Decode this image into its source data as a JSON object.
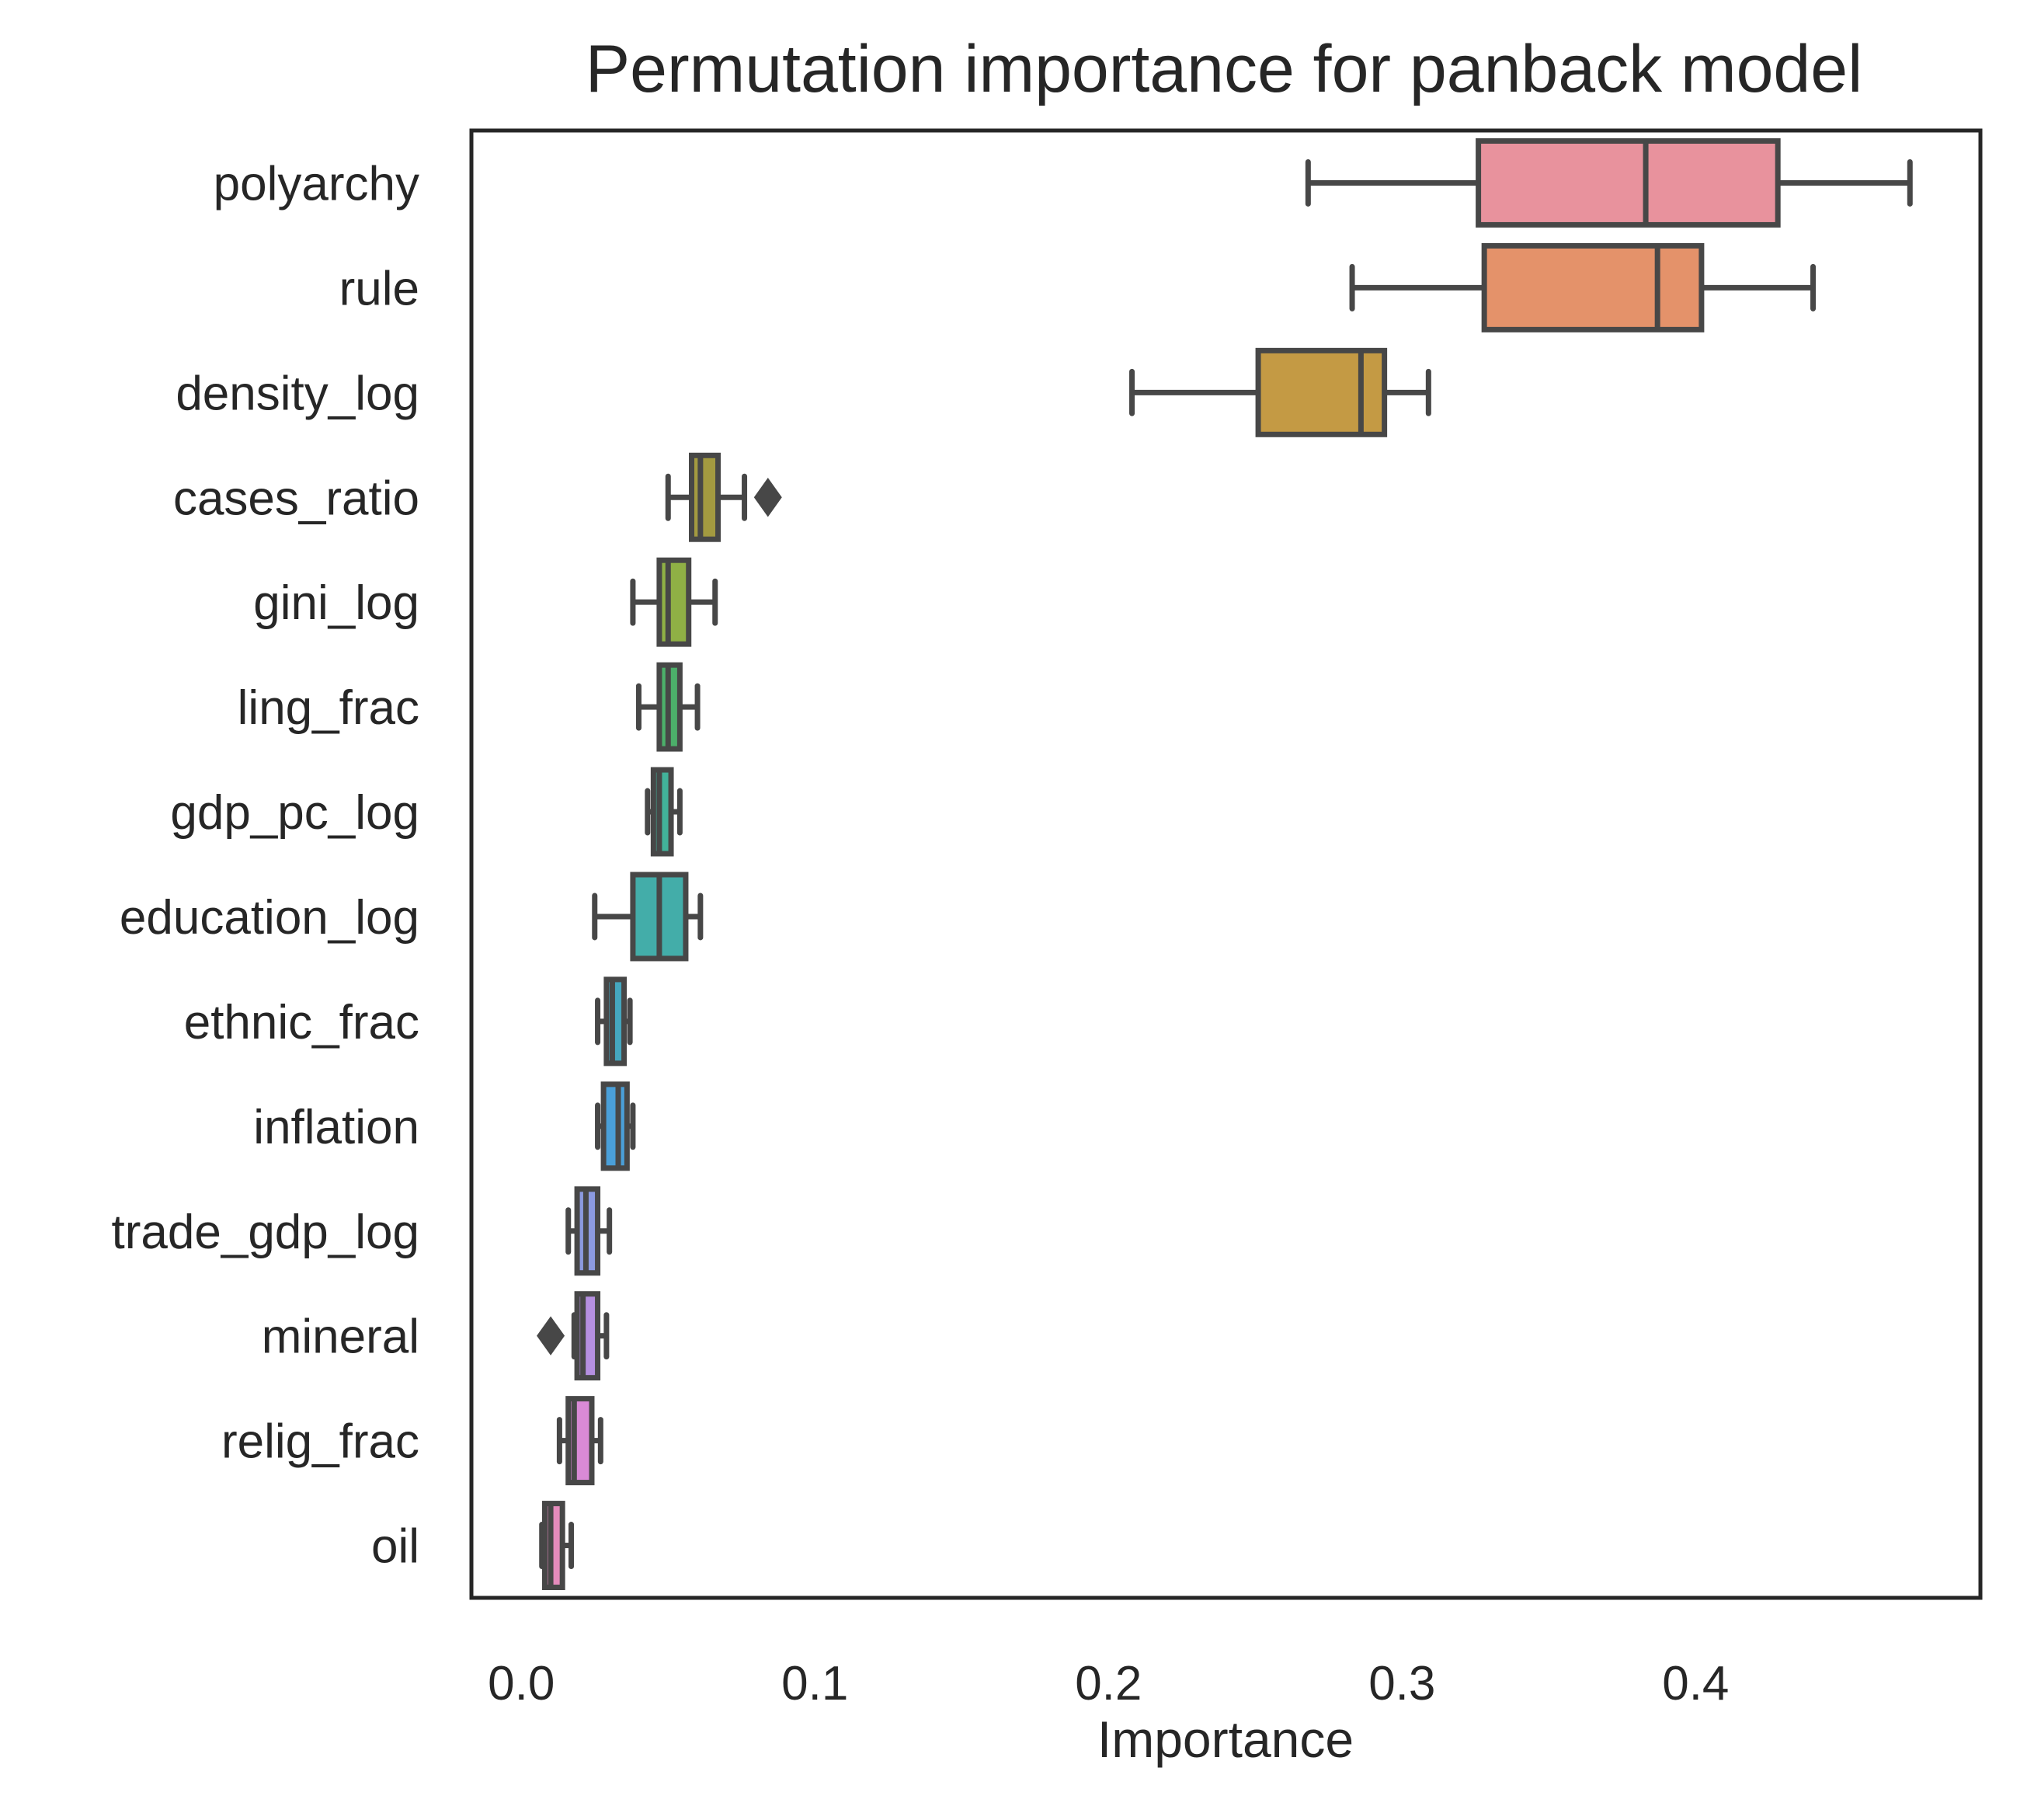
{
  "chart_data": {
    "type": "boxplot",
    "title": "Permutation importance for panback model",
    "xlabel": "Importance",
    "ylabel": "",
    "xlim": [
      -0.017,
      0.497
    ],
    "xticks": [
      0.0,
      0.1,
      0.2,
      0.3,
      0.4
    ],
    "xtick_labels": [
      "0.0",
      "0.1",
      "0.2",
      "0.3",
      "0.4"
    ],
    "grid": false,
    "orientation": "horizontal",
    "categories": [
      "polyarchy",
      "rule",
      "density_log",
      "cases_ratio",
      "gini_log",
      "ling_frac",
      "gdp_pc_log",
      "education_log",
      "ethnic_frac",
      "inflation",
      "trade_gdp_log",
      "mineral",
      "relig_frac",
      "oil"
    ],
    "boxes": [
      {
        "label": "polyarchy",
        "whislo": 0.268,
        "q1": 0.326,
        "med": 0.383,
        "q3": 0.428,
        "whishi": 0.473,
        "fliers": [],
        "color": "#e8929d"
      },
      {
        "label": "rule",
        "whislo": 0.283,
        "q1": 0.328,
        "med": 0.387,
        "q3": 0.402,
        "whishi": 0.44,
        "fliers": [],
        "color": "#e4926a"
      },
      {
        "label": "density_log",
        "whislo": 0.208,
        "q1": 0.251,
        "med": 0.286,
        "q3": 0.294,
        "whishi": 0.309,
        "fliers": [],
        "color": "#c49a44"
      },
      {
        "label": "cases_ratio",
        "whislo": 0.05,
        "q1": 0.058,
        "med": 0.061,
        "q3": 0.067,
        "whishi": 0.076,
        "fliers": [
          0.084
        ],
        "color": "#a39a40"
      },
      {
        "label": "gini_log",
        "whislo": 0.038,
        "q1": 0.047,
        "med": 0.05,
        "q3": 0.057,
        "whishi": 0.066,
        "fliers": [],
        "color": "#8fb045"
      },
      {
        "label": "ling_frac",
        "whislo": 0.04,
        "q1": 0.047,
        "med": 0.05,
        "q3": 0.054,
        "whishi": 0.06,
        "fliers": [],
        "color": "#4caf6a"
      },
      {
        "label": "gdp_pc_log",
        "whislo": 0.043,
        "q1": 0.045,
        "med": 0.047,
        "q3": 0.051,
        "whishi": 0.054,
        "fliers": [],
        "color": "#42b29a"
      },
      {
        "label": "education_log",
        "whislo": 0.025,
        "q1": 0.038,
        "med": 0.047,
        "q3": 0.056,
        "whishi": 0.061,
        "fliers": [],
        "color": "#43ada9"
      },
      {
        "label": "ethnic_frac",
        "whislo": 0.026,
        "q1": 0.029,
        "med": 0.031,
        "q3": 0.035,
        "whishi": 0.037,
        "fliers": [],
        "color": "#45a6be"
      },
      {
        "label": "inflation",
        "whislo": 0.026,
        "q1": 0.028,
        "med": 0.033,
        "q3": 0.036,
        "whishi": 0.038,
        "fliers": [],
        "color": "#4a9fd8"
      },
      {
        "label": "trade_gdp_log",
        "whislo": 0.016,
        "q1": 0.019,
        "med": 0.022,
        "q3": 0.026,
        "whishi": 0.03,
        "fliers": [],
        "color": "#8c9ae0"
      },
      {
        "label": "mineral",
        "whislo": 0.018,
        "q1": 0.019,
        "med": 0.021,
        "q3": 0.026,
        "whishi": 0.029,
        "fliers": [
          0.01
        ],
        "color": "#b58fe0"
      },
      {
        "label": "relig_frac",
        "whislo": 0.013,
        "q1": 0.016,
        "med": 0.018,
        "q3": 0.024,
        "whishi": 0.027,
        "fliers": [],
        "color": "#d98ad6"
      },
      {
        "label": "oil",
        "whislo": 0.007,
        "q1": 0.008,
        "med": 0.01,
        "q3": 0.014,
        "whishi": 0.017,
        "fliers": [],
        "color": "#e58bbc"
      }
    ]
  }
}
